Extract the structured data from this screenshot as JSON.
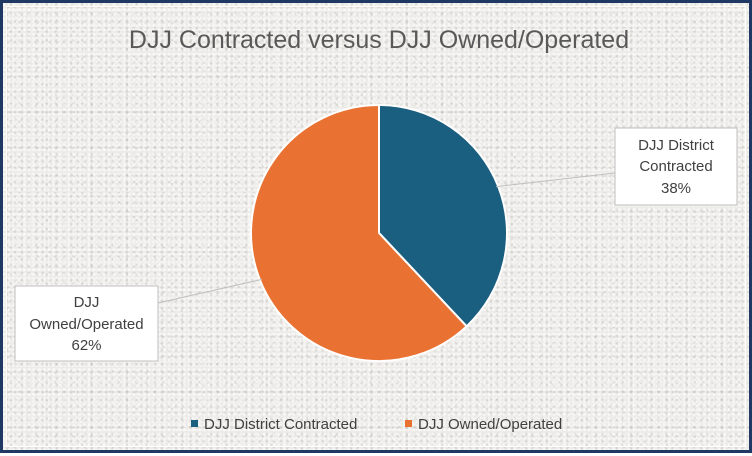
{
  "chart_data": {
    "type": "pie",
    "title": "DJJ Contracted versus DJJ Owned/Operated",
    "slices": [
      {
        "label": "DJJ District Contracted",
        "label_lines": [
          "DJJ District",
          "Contracted"
        ],
        "value": 38,
        "value_label": "38%",
        "color": "#1a5f80"
      },
      {
        "label": "DJJ Owned/Operated",
        "label_lines": [
          "DJJ",
          "Owned/Operated"
        ],
        "value": 62,
        "value_label": "62%",
        "color": "#e97132"
      }
    ],
    "legend": {
      "position": "bottom"
    }
  }
}
